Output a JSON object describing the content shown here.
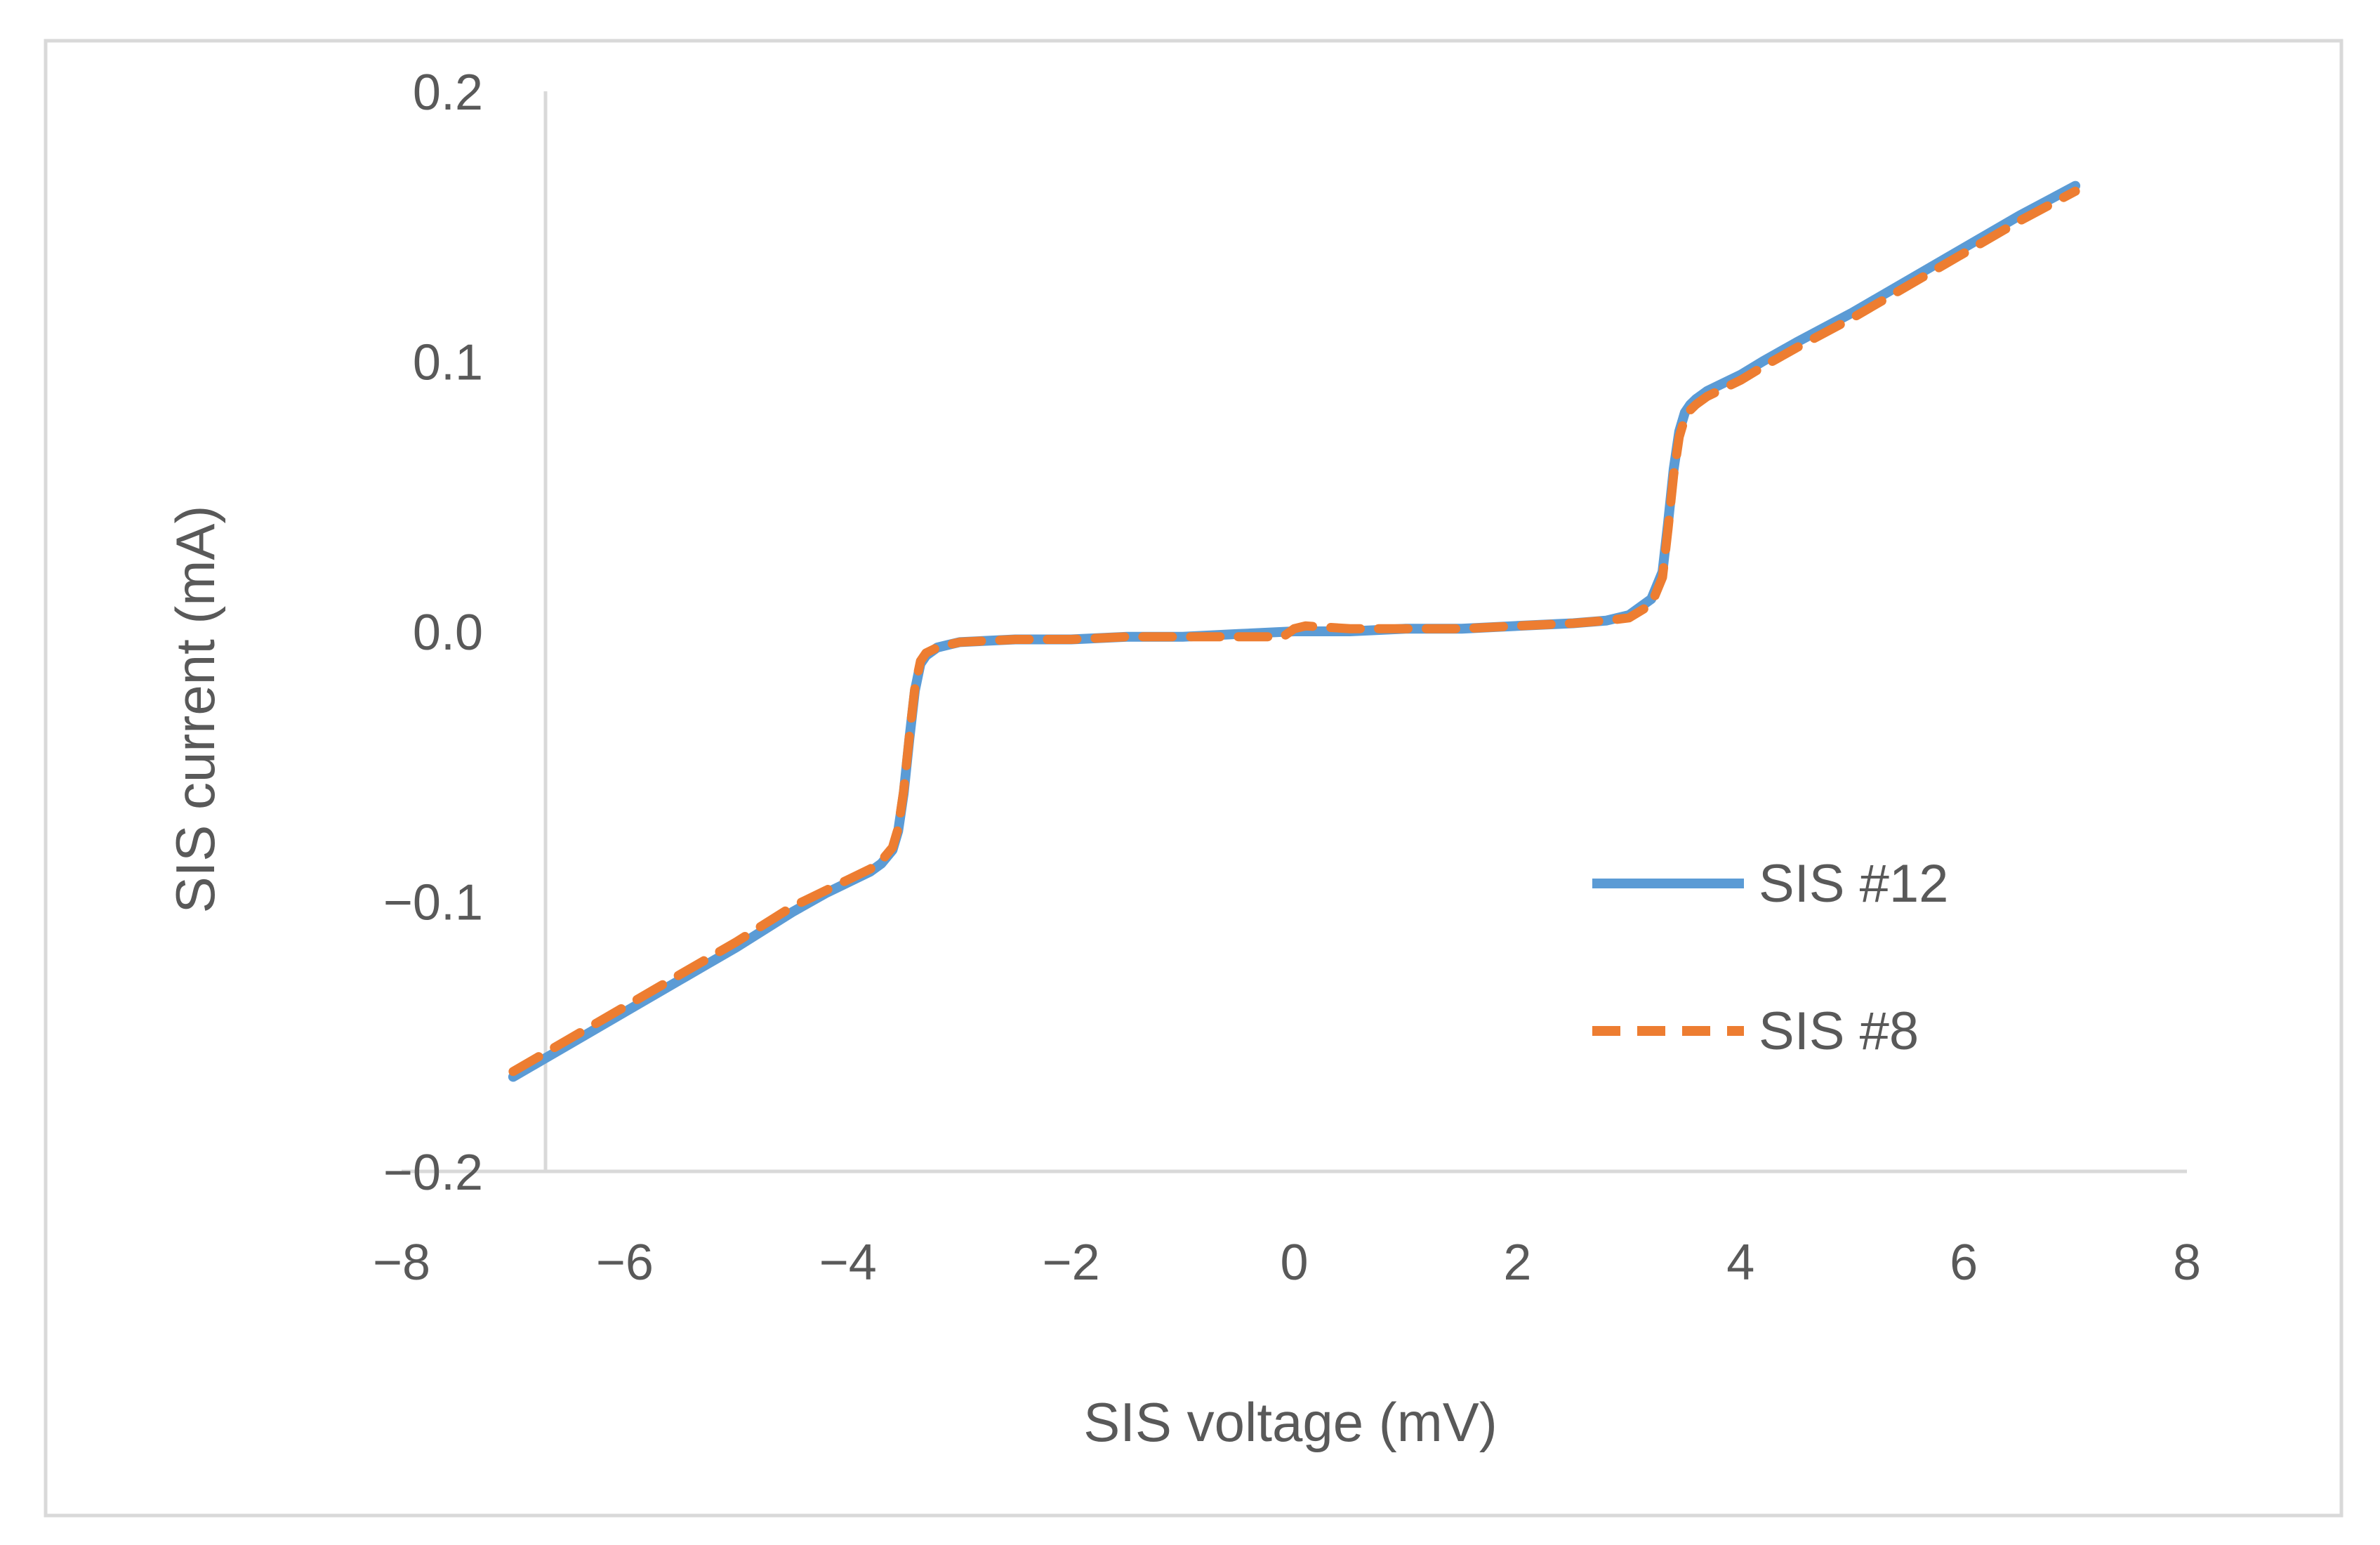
{
  "chart_data": {
    "type": "line",
    "title": "",
    "xlabel": "SIS voltage (mV)",
    "ylabel": "SIS current (mA)",
    "xlim": [
      -8,
      8
    ],
    "ylim": [
      -0.2,
      0.2
    ],
    "x_ticks": [
      -8,
      -6,
      -4,
      -2,
      0,
      2,
      4,
      6,
      8
    ],
    "x_tick_labels": [
      "−8",
      "−6",
      "−4",
      "−2",
      "0",
      "2",
      "4",
      "6",
      "8"
    ],
    "y_ticks": [
      -0.2,
      -0.1,
      0.0,
      0.1,
      0.2
    ],
    "y_tick_labels": [
      "−0.2",
      "−0.1",
      "0.0",
      "0.1",
      "0.2"
    ],
    "grid": false,
    "legend_position": "right",
    "series": [
      {
        "name": "SIS #12",
        "color": "#5B9BD5",
        "style": "solid",
        "x": [
          -7.0,
          -6.5,
          -6.0,
          -5.5,
          -5.0,
          -4.5,
          -4.2,
          -4.0,
          -3.8,
          -3.7,
          -3.6,
          -3.55,
          -3.5,
          -3.45,
          -3.4,
          -3.35,
          -3.3,
          -3.2,
          -3.1,
          -3.0,
          -2.5,
          -2.0,
          -1.5,
          -1.0,
          -0.5,
          0.0,
          0.5,
          1.0,
          1.5,
          2.0,
          2.5,
          2.8,
          3.0,
          3.2,
          3.3,
          3.35,
          3.4,
          3.45,
          3.5,
          3.55,
          3.6,
          3.7,
          3.8,
          4.0,
          4.2,
          4.5,
          5.0,
          5.5,
          6.0,
          6.5,
          7.0
        ],
        "y": [
          -0.165,
          -0.153,
          -0.141,
          -0.129,
          -0.117,
          -0.104,
          -0.097,
          -0.093,
          -0.089,
          -0.086,
          -0.081,
          -0.074,
          -0.06,
          -0.04,
          -0.022,
          -0.012,
          -0.009,
          -0.006,
          -0.005,
          -0.004,
          -0.003,
          -0.003,
          -0.002,
          -0.002,
          -0.001,
          0.0,
          0.0,
          0.001,
          0.001,
          0.002,
          0.003,
          0.004,
          0.006,
          0.012,
          0.022,
          0.04,
          0.06,
          0.074,
          0.081,
          0.084,
          0.086,
          0.089,
          0.091,
          0.095,
          0.1,
          0.107,
          0.118,
          0.13,
          0.142,
          0.154,
          0.165
        ]
      },
      {
        "name": "SIS #8",
        "color": "#ED7D31",
        "style": "dashed",
        "x": [
          -7.0,
          -6.5,
          -6.0,
          -5.5,
          -5.0,
          -4.5,
          -4.2,
          -4.0,
          -3.8,
          -3.7,
          -3.6,
          -3.55,
          -3.5,
          -3.45,
          -3.4,
          -3.35,
          -3.3,
          -3.2,
          -3.1,
          -3.0,
          -2.5,
          -2.0,
          -1.5,
          -1.0,
          -0.5,
          -0.1,
          0.0,
          0.1,
          0.5,
          1.0,
          1.5,
          2.0,
          2.5,
          2.8,
          3.0,
          3.2,
          3.3,
          3.35,
          3.4,
          3.45,
          3.5,
          3.55,
          3.6,
          3.7,
          3.8,
          4.0,
          4.2,
          4.5,
          5.0,
          5.5,
          6.0,
          6.5,
          7.0
        ],
        "y": [
          -0.163,
          -0.151,
          -0.139,
          -0.127,
          -0.115,
          -0.102,
          -0.096,
          -0.092,
          -0.088,
          -0.085,
          -0.08,
          -0.073,
          -0.059,
          -0.039,
          -0.021,
          -0.011,
          -0.008,
          -0.006,
          -0.005,
          -0.004,
          -0.003,
          -0.003,
          -0.002,
          -0.002,
          -0.002,
          -0.002,
          0.001,
          0.002,
          0.001,
          0.001,
          0.001,
          0.002,
          0.003,
          0.004,
          0.005,
          0.01,
          0.02,
          0.038,
          0.058,
          0.072,
          0.079,
          0.082,
          0.084,
          0.087,
          0.089,
          0.093,
          0.098,
          0.105,
          0.116,
          0.128,
          0.14,
          0.152,
          0.163
        ]
      }
    ]
  }
}
